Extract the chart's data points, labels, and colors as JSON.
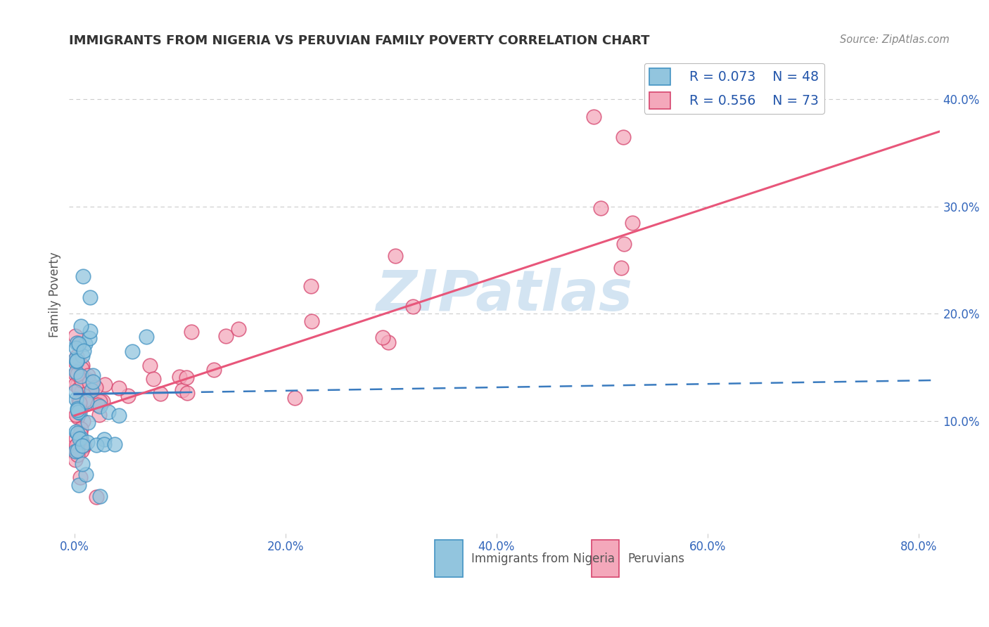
{
  "title": "IMMIGRANTS FROM NIGERIA VS PERUVIAN FAMILY POVERTY CORRELATION CHART",
  "source_text": "Source: ZipAtlas.com",
  "ylabel": "Family Poverty",
  "xlim": [
    -0.005,
    0.82
  ],
  "ylim": [
    -0.005,
    0.44
  ],
  "blue_color": "#92c5de",
  "pink_color": "#f4a8bb",
  "blue_edge_color": "#4393c3",
  "pink_edge_color": "#d6456e",
  "blue_line_color": "#3a7bbf",
  "pink_line_color": "#e8567a",
  "legend_text_color": "#2255aa",
  "axis_tick_color": "#3366bb",
  "axis_label_color": "#555555",
  "grid_color": "#cccccc",
  "background_color": "#ffffff",
  "title_color": "#333333",
  "watermark": "ZIPatlas",
  "watermark_color": "#cce0f0",
  "series1_label": "Immigrants from Nigeria",
  "series2_label": "Peruvians",
  "legend_R1": "R = 0.073",
  "legend_N1": "N = 48",
  "legend_R2": "R = 0.556",
  "legend_N2": "N = 73",
  "xticks": [
    0.0,
    0.2,
    0.4,
    0.6,
    0.8
  ],
  "xticklabels": [
    "0.0%",
    "20.0%",
    "40.0%",
    "60.0%",
    "80.0%"
  ],
  "yticks_right": [
    0.1,
    0.2,
    0.3,
    0.4
  ],
  "yticklabels_right": [
    "10.0%",
    "20.0%",
    "30.0%",
    "40.0%"
  ]
}
